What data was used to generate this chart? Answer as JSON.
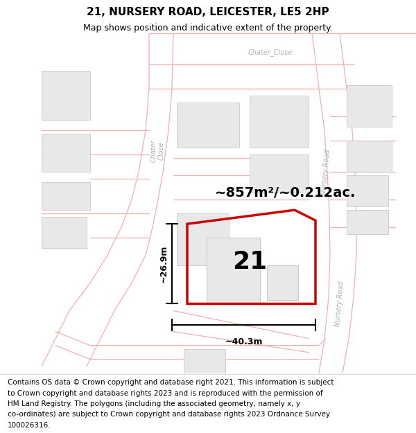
{
  "title_line1": "21, NURSERY ROAD, LEICESTER, LE5 2HP",
  "title_line2": "Map shows position and indicative extent of the property.",
  "area_text": "~857m²/~0.212ac.",
  "label_number": "21",
  "dim_height": "~26.9m",
  "dim_width": "~40.3m",
  "footer_lines": [
    "Contains OS data © Crown copyright and database right 2021. This information is subject",
    "to Crown copyright and database rights 2023 and is reproduced with the permission of",
    "HM Land Registry. The polygons (including the associated geometry, namely x, y",
    "co-ordinates) are subject to Crown copyright and database rights 2023 Ordnance Survey",
    "100026316."
  ],
  "map_bg": "#ffffff",
  "road_line_color": "#f0b0b0",
  "building_fill": "#e8e8e8",
  "building_edge": "#c0c0c0",
  "road_label_color": "#b0b0b0",
  "property_edge": "#cc0000",
  "dim_line_color": "#000000",
  "text_color": "#000000",
  "title_fontsize": 11,
  "subtitle_fontsize": 9,
  "area_fontsize": 14,
  "number_fontsize": 26,
  "dim_fontsize": 9,
  "footer_fontsize": 7.5,
  "road_lw": 0.9,
  "prop_lw": 2.5
}
